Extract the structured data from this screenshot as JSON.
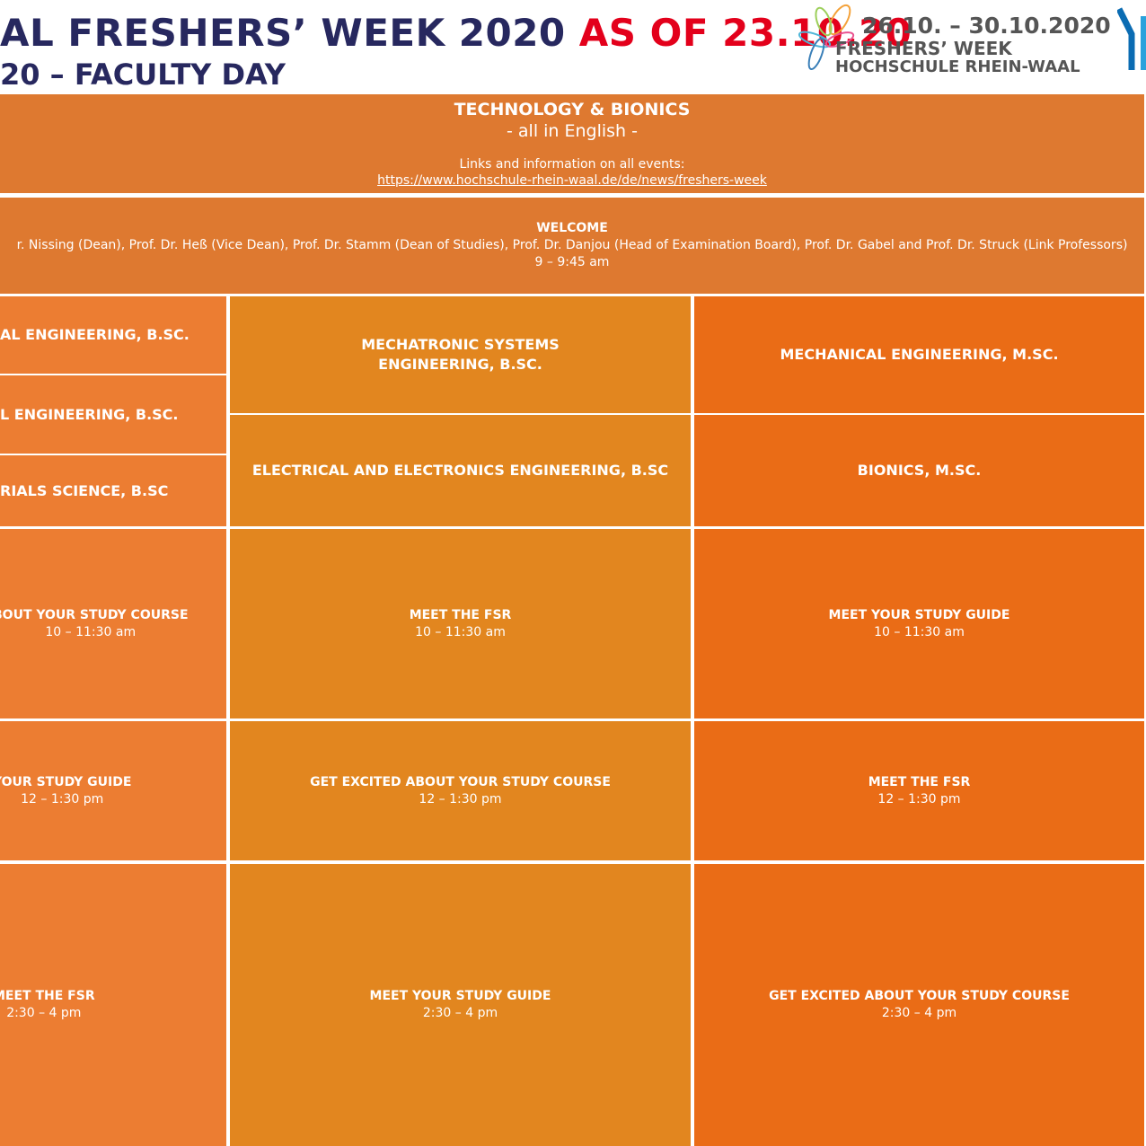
{
  "header": {
    "title_line1": "AL FRESHERS’ WEEK 2020",
    "title_highlight": "AS OF 23.10.20",
    "title_line2": "20 – FACULTY DAY"
  },
  "logo": {
    "dates": "26.10. – 30.10.2020",
    "line1": "FRESHERS’ WEEK",
    "line2": "HOCHSCHULE RHEIN-WAAL"
  },
  "faculty": {
    "name": "TECHNOLOGY & BIONICS",
    "language": "- all in English -",
    "links_label": "Links and information on all events:",
    "link": "https://www.hochschule-rhein-waal.de/de/news/freshers-week"
  },
  "welcome": {
    "title": "WELCOME",
    "speakers": "r. Nissing (Dean), Prof. Dr. Heß (Vice Dean), Prof. Dr. Stamm (Dean of Studies), Prof. Dr. Danjou (Head of Examination Board), Prof. Dr. Gabel and Prof. Dr. Struck (Link Professors)",
    "time": "9 – 9:45 am"
  },
  "programmes": [
    [
      "AL ENGINEERING, B.SC.",
      "L ENGINEERING, B.SC.",
      "RIALS SCIENCE, B.SC"
    ],
    [
      "MECHATRONIC SYSTEMS ENGINEERING, B.SC.",
      "ELECTRICAL AND ELECTRONICS ENGINEERING, B.SC"
    ],
    [
      "MECHANICAL ENGINEERING, M.SC.",
      "BIONICS, M.SC."
    ]
  ],
  "sessions": [
    [
      {
        "title": "BOUT YOUR STUDY COURSE",
        "time": "10 – 11:30 am"
      },
      {
        "title": "MEET THE FSR",
        "time": "10 – 11:30 am"
      },
      {
        "title": "MEET YOUR STUDY GUIDE",
        "time": "10 – 11:30 am"
      }
    ],
    [
      {
        "title": "YOUR STUDY GUIDE",
        "time": "12 – 1:30 pm"
      },
      {
        "title": "GET EXCITED ABOUT YOUR STUDY COURSE",
        "time": "12 – 1:30 pm"
      },
      {
        "title": "MEET THE FSR",
        "time": "12 – 1:30 pm"
      }
    ],
    [
      {
        "title": "MEET THE FSR",
        "time": "2:30 – 4 pm"
      },
      {
        "title": "MEET YOUR STUDY GUIDE",
        "time": "2:30 – 4 pm"
      },
      {
        "title": "GET EXCITED ABOUT YOUR STUDY COURSE",
        "time": "2:30 – 4 pm"
      }
    ]
  ]
}
